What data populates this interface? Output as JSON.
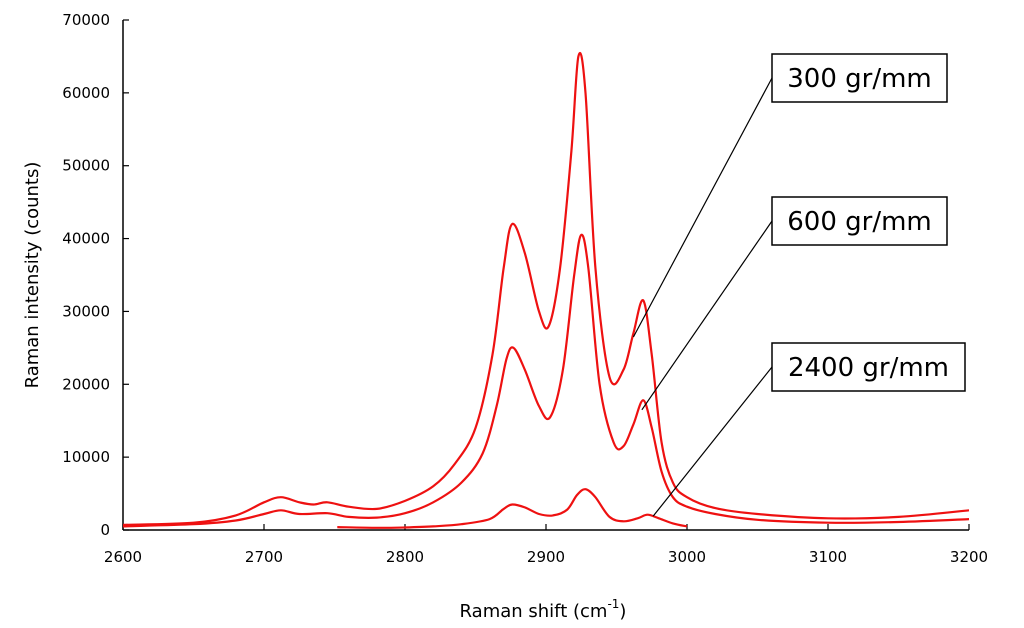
{
  "chart_data": {
    "type": "line",
    "title": "",
    "xlabel": "Raman shift (cm",
    "xlabel_superscript": "-1",
    "xlabel_suffix": ")",
    "ylabel": "Raman intensity (counts)",
    "xlim": [
      2600,
      3200
    ],
    "ylim": [
      0,
      70000
    ],
    "xticks": [
      "2600",
      "2700",
      "2800",
      "2900",
      "3000",
      "3100",
      "3200"
    ],
    "yticks": [
      "0",
      "10000",
      "20000",
      "30000",
      "40000",
      "50000",
      "60000",
      "70000"
    ],
    "grid": false,
    "line_color": "#ee1111",
    "series": [
      {
        "name": "300 gr/mm",
        "x": [
          2600,
          2650,
          2680,
          2700,
          2712,
          2725,
          2735,
          2745,
          2760,
          2780,
          2800,
          2820,
          2835,
          2850,
          2862,
          2870,
          2876,
          2885,
          2895,
          2902,
          2910,
          2918,
          2923,
          2928,
          2935,
          2945,
          2955,
          2962,
          2969,
          2975,
          2982,
          2990,
          3000,
          3020,
          3050,
          3100,
          3150,
          3200
        ],
        "y": [
          700,
          1000,
          2000,
          3800,
          4500,
          3800,
          3500,
          3800,
          3200,
          2900,
          4000,
          6000,
          9000,
          14000,
          24000,
          36000,
          42000,
          38000,
          30000,
          28000,
          36000,
          52000,
          65000,
          60000,
          36000,
          21000,
          22000,
          27000,
          31500,
          24000,
          12000,
          6500,
          4500,
          3000,
          2200,
          1600,
          1800,
          2700
        ]
      },
      {
        "name": "600 gr/mm",
        "x": [
          2600,
          2650,
          2680,
          2700,
          2712,
          2725,
          2745,
          2760,
          2780,
          2800,
          2820,
          2840,
          2855,
          2865,
          2872,
          2877,
          2885,
          2895,
          2903,
          2912,
          2920,
          2925,
          2930,
          2938,
          2948,
          2955,
          2962,
          2969,
          2975,
          2982,
          2990,
          3000,
          3020,
          3050,
          3100,
          3150,
          3200
        ],
        "y": [
          500,
          800,
          1300,
          2200,
          2700,
          2200,
          2300,
          1800,
          1700,
          2300,
          3800,
          6500,
          10500,
          17000,
          23500,
          25000,
          22000,
          17000,
          15500,
          22000,
          35000,
          40500,
          36000,
          20000,
          12000,
          11500,
          14500,
          17800,
          14000,
          8000,
          4500,
          3200,
          2200,
          1400,
          1000,
          1100,
          1500
        ]
      },
      {
        "name": "2400 gr/mm",
        "x": [
          2752,
          2780,
          2800,
          2820,
          2840,
          2860,
          2870,
          2876,
          2885,
          2895,
          2905,
          2915,
          2922,
          2928,
          2935,
          2945,
          2955,
          2965,
          2972,
          2980,
          2990,
          3000
        ],
        "y": [
          400,
          300,
          350,
          500,
          800,
          1500,
          2900,
          3500,
          3100,
          2200,
          2000,
          2800,
          4800,
          5600,
          4500,
          1800,
          1200,
          1600,
          2100,
          1600,
          900,
          500
        ]
      }
    ],
    "annotations": [
      {
        "text": "300 gr/mm",
        "series": "300 gr/mm",
        "point": [
          2962,
          26500
        ]
      },
      {
        "text": "600 gr/mm",
        "series": "600 gr/mm",
        "point": [
          2968,
          16500
        ]
      },
      {
        "text": "2400 gr/mm",
        "series": "2400 gr/mm",
        "point": [
          2976,
          1900
        ]
      }
    ]
  }
}
